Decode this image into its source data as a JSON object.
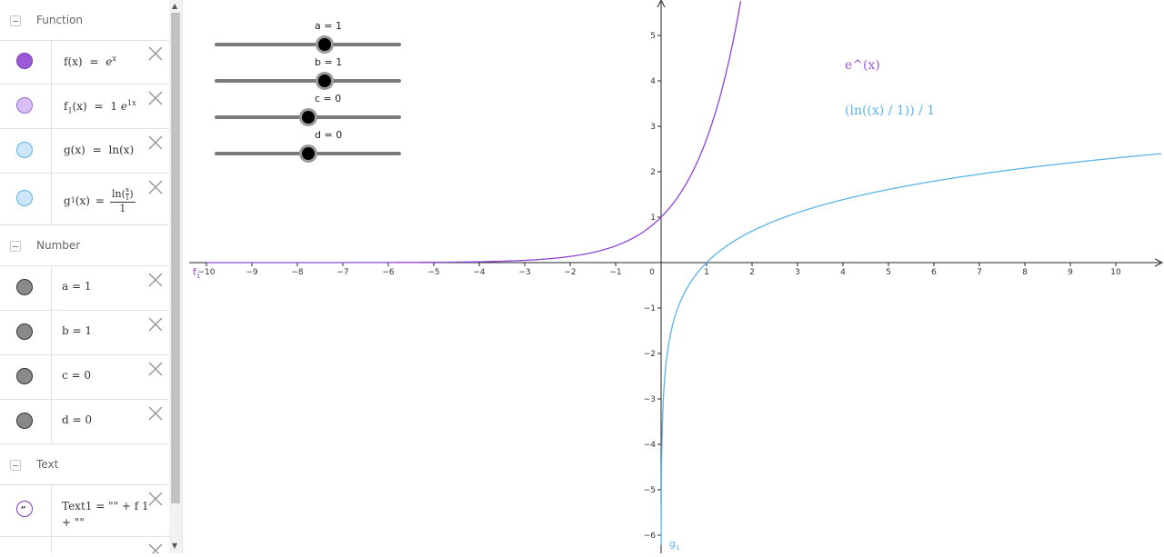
{
  "algebra": {
    "groups": {
      "function": "Function",
      "number": "Number",
      "text": "Text"
    },
    "functions": [
      {
        "name": "f(x)",
        "eq": "=",
        "rhs_base": "e",
        "rhs_sup": "x",
        "color": "#9B59D8"
      },
      {
        "name": "f",
        "sub": "1",
        "args": "(x)",
        "eq": "=",
        "rhs_coef": "1",
        "rhs_base": "e",
        "rhs_sup": "1x",
        "color": "#C39BF2"
      },
      {
        "name": "g(x)",
        "eq": "=",
        "rhs": "ln(x)",
        "color": "#A8D0F5"
      },
      {
        "name": "g",
        "sub": "1",
        "args": "(x)",
        "eq": "=",
        "frac_num_fn": "ln",
        "frac_num_in_top": "x",
        "frac_num_in_bot": "1",
        "frac_den": "1",
        "color": "#A8D0F5"
      }
    ],
    "numbers": [
      {
        "text": "a = 1"
      },
      {
        "text": "b = 1"
      },
      {
        "text": "c = 0"
      },
      {
        "text": "d = 0"
      }
    ],
    "text_item": {
      "line1": "Text1 = \"\" + f 1",
      "line2": "+ \"\""
    }
  },
  "sliders": [
    {
      "label": "a = 1",
      "value": 1,
      "min": -5,
      "max": 5
    },
    {
      "label": "b = 1",
      "value": 1,
      "min": -5,
      "max": 5
    },
    {
      "label": "c = 0",
      "value": 0,
      "min": -5,
      "max": 5
    },
    {
      "label": "d = 0",
      "value": 0,
      "min": -5,
      "max": 5
    }
  ],
  "graphics": {
    "overlay_texts": [
      {
        "text": "e^(x)",
        "color": "#9B59D8"
      },
      {
        "text": "(ln((x) / 1)) / 1",
        "color": "#5AB4E8"
      }
    ],
    "curve_labels": {
      "f1": "f",
      "f1_sub": "1",
      "g1": "g",
      "g1_sub": "1"
    },
    "colors": {
      "f": "#8E44D8",
      "g": "#5AB4E8",
      "axes": "#222"
    }
  },
  "chart_data": {
    "type": "line",
    "xlim": [
      -10,
      11
    ],
    "ylim": [
      -6,
      5
    ],
    "x_ticks": [
      "-10",
      "-9",
      "-8",
      "-7",
      "-6",
      "-5",
      "-4",
      "-3",
      "-2",
      "-1",
      "0",
      "1",
      "2",
      "3",
      "4",
      "5",
      "6",
      "7",
      "8",
      "9",
      "10"
    ],
    "y_ticks": [
      "5",
      "4",
      "3",
      "2",
      "1",
      "-1",
      "-2",
      "-3",
      "-4",
      "-5",
      "-6"
    ],
    "grid": false,
    "series": [
      {
        "function": "exp",
        "x": [
          -10,
          -5,
          -2,
          -1,
          0,
          1,
          1.5,
          1.75
        ],
        "y": [
          5e-05,
          0.0067,
          0.135,
          0.368,
          1,
          2.718,
          4.48,
          5.75
        ]
      },
      {
        "function": "ln",
        "x": [
          0.002,
          0.01,
          0.05,
          0.2,
          0.5,
          1,
          2,
          4,
          6,
          8,
          11
        ],
        "y": [
          -6.2,
          -4.6,
          -3.0,
          -1.61,
          -0.69,
          0,
          0.69,
          1.39,
          1.79,
          2.08,
          2.4
        ]
      }
    ]
  }
}
